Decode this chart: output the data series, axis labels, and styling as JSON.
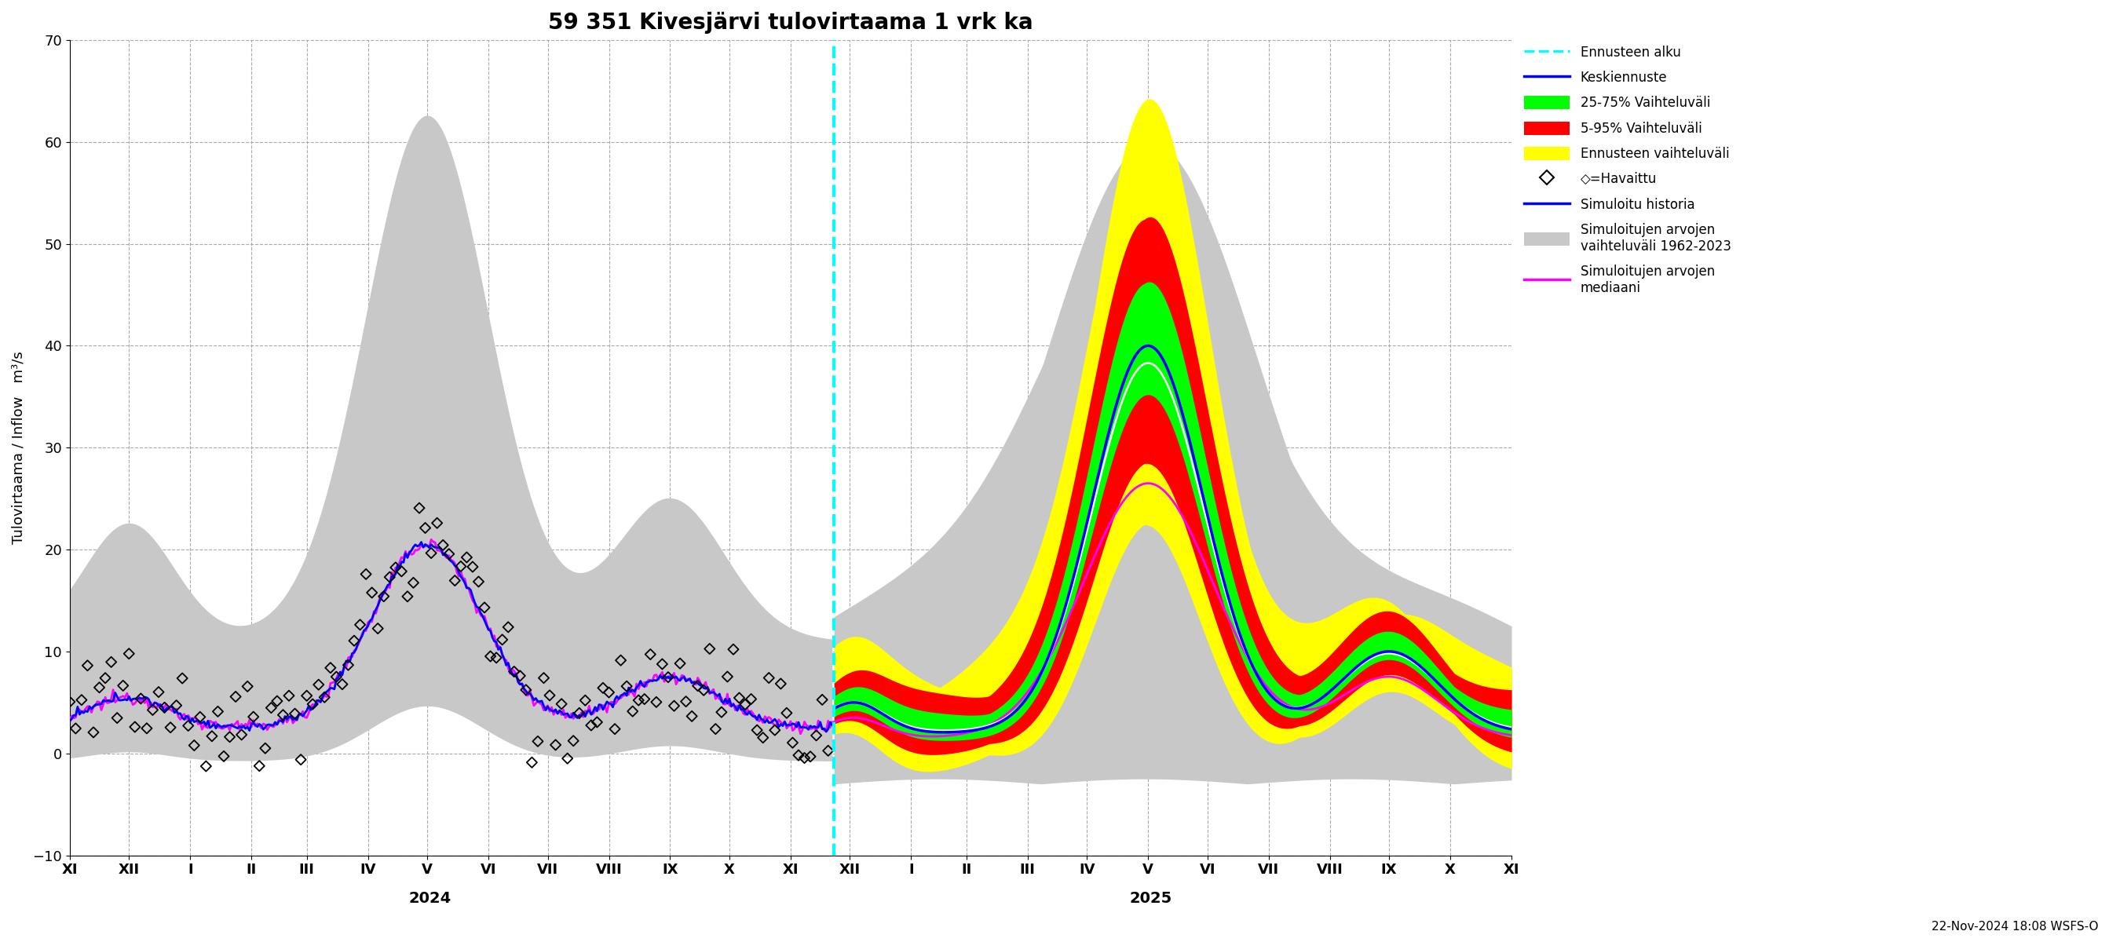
{
  "title": "59 351 Kivesjärvi tulovirtaama 1 vrk ka",
  "ylabel": "Tulovirtaama / Inflow   m³/s",
  "ylim": [
    -10,
    70
  ],
  "yticks": [
    -10,
    0,
    10,
    20,
    30,
    40,
    50,
    60,
    70
  ],
  "footnote": "22-Nov-2024 18:08 WSFS-O",
  "colors": {
    "forecast_line": "#00FFFF",
    "keskiennuste": "#0000FF",
    "vaihteluvali_25_75": "#00FF00",
    "vaihteluvali_5_95": "#FF0000",
    "ennusteen_vaihteluvali": "#FFFF00",
    "simuloitu_historia": "#0000FF",
    "simuloitujen_vaihteluvali": "#C8C8C8",
    "simuloitujen_mediaani": "#FF00FF",
    "havaittu": "#000000",
    "background": "#FFFFFF"
  }
}
